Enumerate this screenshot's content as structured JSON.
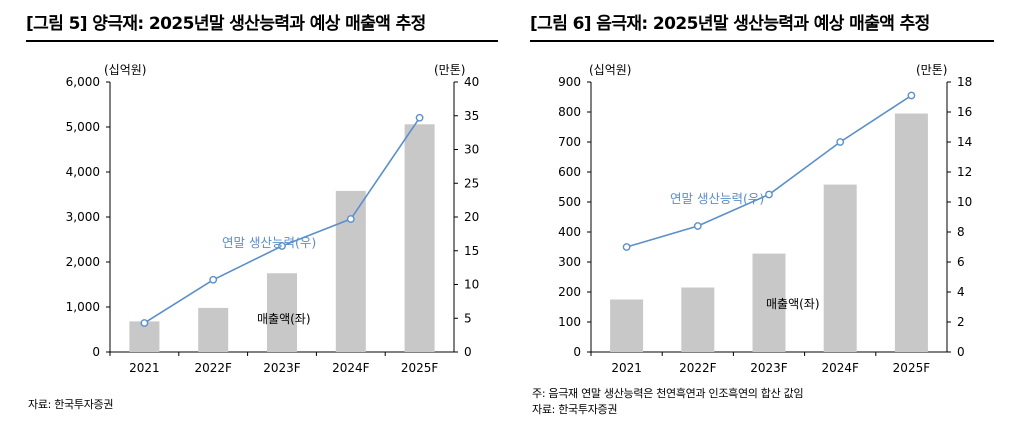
{
  "panels": [
    {
      "title": "[그림 5] 양극재: 2025년말 생산능력과 예상 매출액 추정",
      "notes": [
        "자료: 한국투자증권"
      ],
      "chart_data": {
        "type": "bar",
        "categories": [
          "2021",
          "2022F",
          "2023F",
          "2024F",
          "2025F"
        ],
        "y_left": {
          "unit": "(십억원)",
          "ylim": [
            0,
            6000
          ],
          "ticks": [
            "0",
            "1,000",
            "2,000",
            "3,000",
            "4,000",
            "5,000",
            "6,000"
          ]
        },
        "y_right": {
          "unit": "(만톤)",
          "ylim": [
            0,
            40
          ],
          "ticks": [
            "0",
            "5",
            "10",
            "15",
            "20",
            "25",
            "30",
            "35",
            "40"
          ]
        },
        "series": [
          {
            "name": "매출액(좌)",
            "type": "bar",
            "axis": "left",
            "color": "#c8c8c8",
            "values": [
              680,
              980,
              1750,
              3580,
              5060
            ]
          },
          {
            "name": "연말 생산능력(우)",
            "type": "line",
            "axis": "right",
            "color": "#5b8fc9",
            "values": [
              4.3,
              10.7,
              15.7,
              19.7,
              34.7
            ]
          }
        ]
      }
    },
    {
      "title": "[그림 6] 음극재: 2025년말 생산능력과 예상 매출액 추정",
      "notes": [
        "주: 음극재 연말 생산능력은 천연흑연과 인조흑연의 합산 값임",
        "자료: 한국투자증권"
      ],
      "chart_data": {
        "type": "bar",
        "categories": [
          "2021",
          "2022F",
          "2023F",
          "2024F",
          "2025F"
        ],
        "y_left": {
          "unit": "(십억원)",
          "ylim": [
            0,
            900
          ],
          "ticks": [
            "0",
            "100",
            "200",
            "300",
            "400",
            "500",
            "600",
            "700",
            "800",
            "900"
          ]
        },
        "y_right": {
          "unit": "(만톤)",
          "ylim": [
            0,
            18
          ],
          "ticks": [
            "0",
            "2",
            "4",
            "6",
            "8",
            "10",
            "12",
            "14",
            "16",
            "18"
          ]
        },
        "series": [
          {
            "name": "매출액(좌)",
            "type": "bar",
            "axis": "left",
            "color": "#c8c8c8",
            "values": [
              175,
              215,
              328,
              558,
              795
            ]
          },
          {
            "name": "연말 생산능력(우)",
            "type": "line",
            "axis": "right",
            "color": "#5b8fc9",
            "values": [
              7.0,
              8.4,
              10.5,
              14.0,
              17.1
            ]
          }
        ]
      }
    }
  ]
}
